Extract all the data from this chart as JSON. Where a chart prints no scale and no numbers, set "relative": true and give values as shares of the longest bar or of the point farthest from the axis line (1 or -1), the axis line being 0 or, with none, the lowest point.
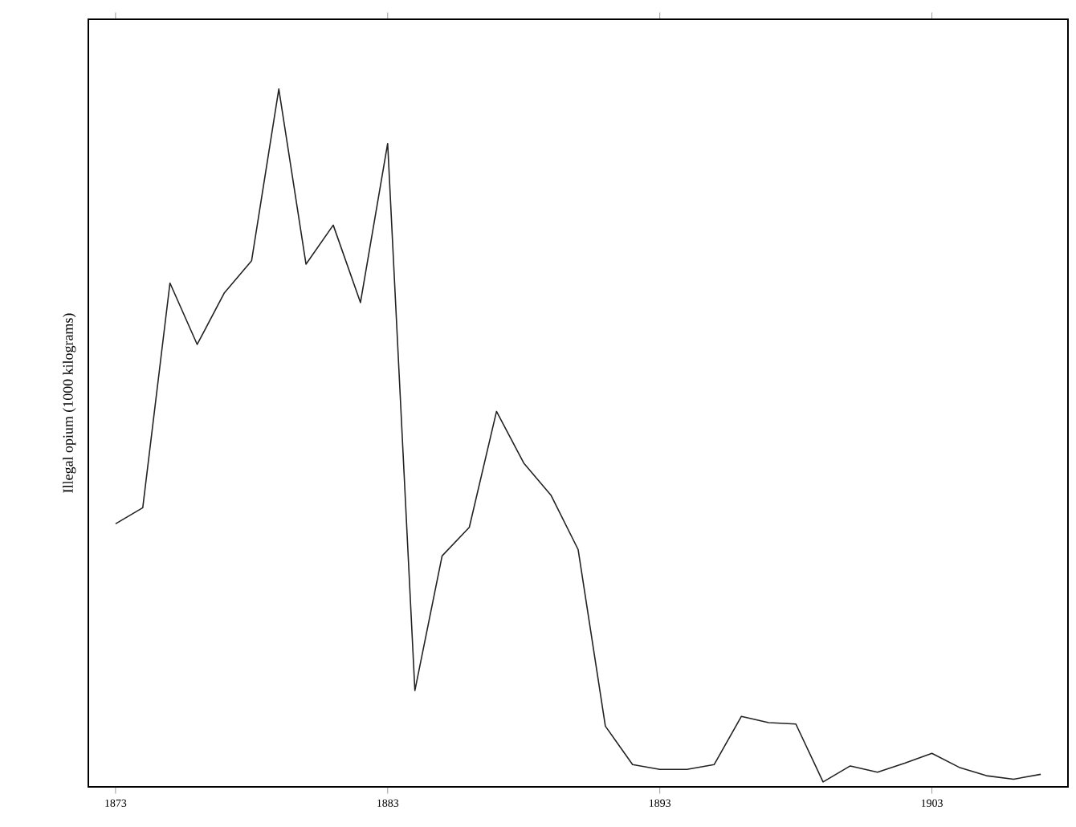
{
  "chart_data": {
    "type": "line",
    "relative": true,
    "ylabel": "Illegal opium (1000 kilograms)",
    "x": [
      1873,
      1874,
      1875,
      1876,
      1877,
      1878,
      1879,
      1880,
      1881,
      1882,
      1883,
      1884,
      1885,
      1886,
      1887,
      1888,
      1889,
      1890,
      1891,
      1892,
      1893,
      1894,
      1895,
      1896,
      1897,
      1898,
      1899,
      1900,
      1901,
      1902,
      1903,
      1904,
      1905,
      1906,
      1907
    ],
    "values": [
      0.377,
      0.4,
      0.722,
      0.634,
      0.708,
      0.754,
      1,
      0.749,
      0.805,
      0.694,
      0.922,
      0.138,
      0.331,
      0.372,
      0.538,
      0.464,
      0.418,
      0.34,
      0.087,
      0.032,
      0.025,
      0.025,
      0.032,
      0.101,
      0.092,
      0.09,
      0.007,
      0.03,
      0.021,
      0.034,
      0.048,
      0.028,
      0.016,
      0.011,
      0.018
    ],
    "color": "#222222",
    "xlim": [
      1872,
      1908
    ],
    "xticks": [
      1873,
      1883,
      1893,
      1903
    ],
    "tick_labels": "x",
    "grid": false,
    "marker": "none",
    "line_style": "solid"
  }
}
